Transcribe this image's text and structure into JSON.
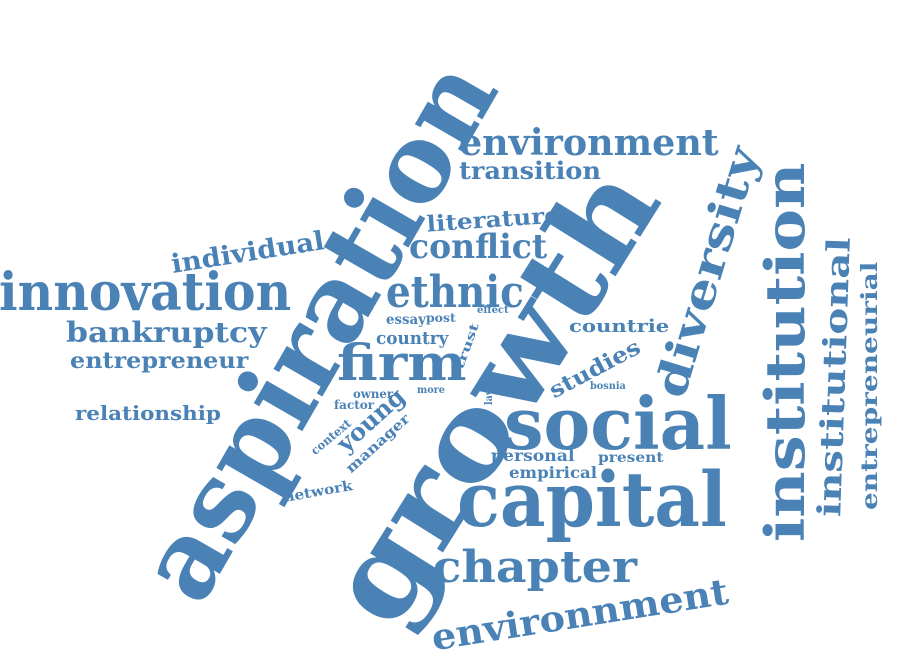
{
  "colors": {
    "word": "#4a82b6",
    "background": "#ffffff"
  },
  "words": [
    {
      "text": "aspiration"
    },
    {
      "text": "growth"
    },
    {
      "text": "social"
    },
    {
      "text": "capital"
    },
    {
      "text": "institution"
    },
    {
      "text": "innovation"
    },
    {
      "text": "diversity"
    },
    {
      "text": "environment"
    },
    {
      "text": "environnment"
    },
    {
      "text": "chapter"
    },
    {
      "text": "ethnic"
    },
    {
      "text": "firm"
    },
    {
      "text": "conflict"
    },
    {
      "text": "institutional"
    },
    {
      "text": "bankruptcy"
    },
    {
      "text": "entrepreneurial"
    },
    {
      "text": "individual"
    },
    {
      "text": "entrepreneur"
    },
    {
      "text": "transition"
    },
    {
      "text": "literature"
    },
    {
      "text": "relationship"
    },
    {
      "text": "countrie"
    },
    {
      "text": "studies"
    },
    {
      "text": "young"
    },
    {
      "text": "country"
    },
    {
      "text": "empirical"
    },
    {
      "text": "personal"
    },
    {
      "text": "network"
    },
    {
      "text": "manager"
    },
    {
      "text": "present"
    },
    {
      "text": "essay"
    },
    {
      "text": "trust"
    },
    {
      "text": "post"
    },
    {
      "text": "context"
    },
    {
      "text": "effect"
    },
    {
      "text": "owner"
    },
    {
      "text": "factor"
    },
    {
      "text": "more"
    },
    {
      "text": "bosnia"
    },
    {
      "text": "law"
    }
  ]
}
